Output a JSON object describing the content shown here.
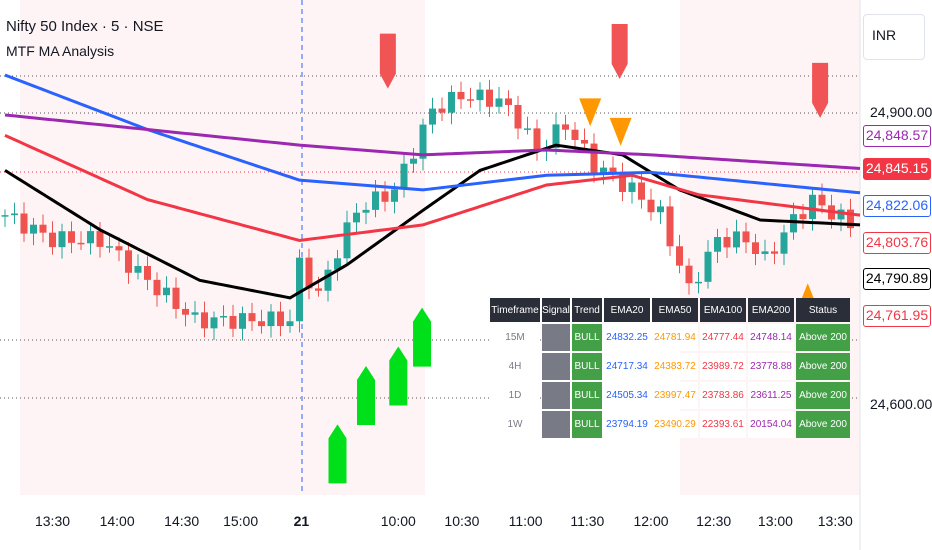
{
  "header": {
    "title": "Nifty 50 Index · 5 · NSE",
    "indicator": "MTF MA Analysis",
    "currency": "INR"
  },
  "price_labels": [
    {
      "value": "24,848.57",
      "color": "#9c27b0",
      "fill": false
    },
    {
      "value": "24,845.15",
      "color": "#f23645",
      "fill": true
    },
    {
      "value": "24,822.06",
      "color": "#2962ff",
      "fill": false
    },
    {
      "value": "24,803.76",
      "color": "#f23645",
      "fill": false
    },
    {
      "value": "24,790.89",
      "color": "#000000",
      "fill": false
    },
    {
      "value": "24,761.95",
      "color": "#f23645",
      "fill": false
    }
  ],
  "table": {
    "headers": [
      "Timeframe",
      "Signal",
      "Trend",
      "EMA20",
      "EMA50",
      "EMA100",
      "EMA200",
      "Status"
    ],
    "rows": [
      {
        "tf": "15M",
        "trend": "BULL",
        "ema20": "24832.25",
        "ema50": "24781.94",
        "ema100": "24777.44",
        "ema200": "24748.14",
        "status": "Above 200"
      },
      {
        "tf": "4H",
        "trend": "BULL",
        "ema20": "24717.34",
        "ema50": "24383.72",
        "ema100": "23989.72",
        "ema200": "23778.88",
        "status": "Above 200"
      },
      {
        "tf": "1D",
        "trend": "BULL",
        "ema20": "24505.34",
        "ema50": "23997.47",
        "ema100": "23783.86",
        "ema200": "23611.25",
        "status": "Above 200"
      },
      {
        "tf": "1W",
        "trend": "BULL",
        "ema20": "23794.19",
        "ema50": "23490.29",
        "ema100": "22393.61",
        "ema200": "20154.04",
        "status": "Above 200"
      }
    ],
    "colors": {
      "ema20": "#2962ff",
      "ema50": "#ff9800",
      "ema100": "#f23645",
      "ema200": "#9c27b0"
    }
  },
  "chart_data": {
    "type": "line",
    "title": "Nifty 50 Index · 5 · NSE",
    "y_ticks": [
      "24,900.00",
      "24,600.00"
    ],
    "y_tick_values": [
      24900,
      24600
    ],
    "ylim": [
      24490,
      25010
    ],
    "x_ticks": [
      {
        "label": "13:30",
        "i": 5
      },
      {
        "label": "14:00",
        "i": 11.8
      },
      {
        "label": "14:30",
        "i": 18.6
      },
      {
        "label": "15:00",
        "i": 24.8
      },
      {
        "label": "21",
        "i": 31.2
      },
      {
        "label": "10:00",
        "i": 41.4
      },
      {
        "label": "10:30",
        "i": 48.1
      },
      {
        "label": "11:00",
        "i": 54.8
      },
      {
        "label": "11:30",
        "i": 61.3
      },
      {
        "label": "12:00",
        "i": 68
      },
      {
        "label": "12:30",
        "i": 74.6
      },
      {
        "label": "13:00",
        "i": 81.1
      },
      {
        "label": "13:30",
        "i": 87.4
      }
    ],
    "candle_count": 90,
    "close_anchors": [
      [
        0,
        24795
      ],
      [
        5,
        24770
      ],
      [
        10,
        24770
      ],
      [
        15,
        24728
      ],
      [
        20,
        24687
      ],
      [
        30,
        24687
      ],
      [
        31,
        24744
      ],
      [
        33,
        24713
      ],
      [
        35,
        24759
      ],
      [
        37,
        24800
      ],
      [
        41,
        24821
      ],
      [
        43,
        24862
      ],
      [
        45,
        24903
      ],
      [
        48,
        24918
      ],
      [
        52,
        24913
      ],
      [
        54,
        24893
      ],
      [
        56,
        24862
      ],
      [
        59,
        24888
      ],
      [
        62,
        24847
      ],
      [
        66,
        24821
      ],
      [
        69,
        24795
      ],
      [
        72,
        24718
      ],
      [
        75,
        24770
      ],
      [
        78,
        24770
      ],
      [
        80,
        24749
      ],
      [
        83,
        24790
      ],
      [
        85,
        24810
      ],
      [
        90,
        24780
      ]
    ],
    "series": [
      {
        "name": "EMA20",
        "color": "#000000",
        "anchors": [
          [
            0,
            24841
          ],
          [
            10,
            24780
          ],
          [
            20.5,
            24728
          ],
          [
            30,
            24710
          ],
          [
            36,
            24744
          ],
          [
            44,
            24800
          ],
          [
            50,
            24841
          ],
          [
            58,
            24867
          ],
          [
            65,
            24857
          ],
          [
            71,
            24821
          ],
          [
            79.5,
            24790
          ],
          [
            90,
            24785
          ]
        ]
      },
      {
        "name": "EMA50",
        "color": "#f23645",
        "anchors": [
          [
            0,
            24877
          ],
          [
            15,
            24811
          ],
          [
            31,
            24769
          ],
          [
            44,
            24785
          ],
          [
            57,
            24826
          ],
          [
            66,
            24836
          ],
          [
            73,
            24816
          ],
          [
            90,
            24795
          ]
        ]
      },
      {
        "name": "EMA100",
        "color": "#2962ff",
        "anchors": [
          [
            0,
            24939
          ],
          [
            15,
            24883
          ],
          [
            31,
            24831
          ],
          [
            44,
            24821
          ],
          [
            57,
            24836
          ],
          [
            68,
            24839
          ],
          [
            81.5,
            24826
          ],
          [
            90,
            24818
          ]
        ]
      },
      {
        "name": "EMA200",
        "color": "#9c27b0",
        "anchors": [
          [
            0,
            24898
          ],
          [
            31,
            24867
          ],
          [
            44,
            24857
          ],
          [
            57,
            24862
          ],
          [
            68,
            24857
          ],
          [
            90,
            24843
          ]
        ]
      }
    ],
    "markers": [
      {
        "type": "sell",
        "i": 40.3,
        "price": 24925
      },
      {
        "type": "sell",
        "i": 64.7,
        "price": 24935
      },
      {
        "type": "sell",
        "i": 85.8,
        "price": 24895
      },
      {
        "type": "warn-down",
        "i": 61.6,
        "price": 24915
      },
      {
        "type": "warn-down",
        "i": 64.8,
        "price": 24895
      },
      {
        "type": "warn-up",
        "i": 84.5,
        "price": 24725
      },
      {
        "type": "buy",
        "i": 35,
        "price": 24580
      },
      {
        "type": "buy",
        "i": 38,
        "price": 24640
      },
      {
        "type": "buy",
        "i": 41.4,
        "price": 24660
      },
      {
        "type": "buy",
        "i": 43.9,
        "price": 24700
      }
    ]
  }
}
